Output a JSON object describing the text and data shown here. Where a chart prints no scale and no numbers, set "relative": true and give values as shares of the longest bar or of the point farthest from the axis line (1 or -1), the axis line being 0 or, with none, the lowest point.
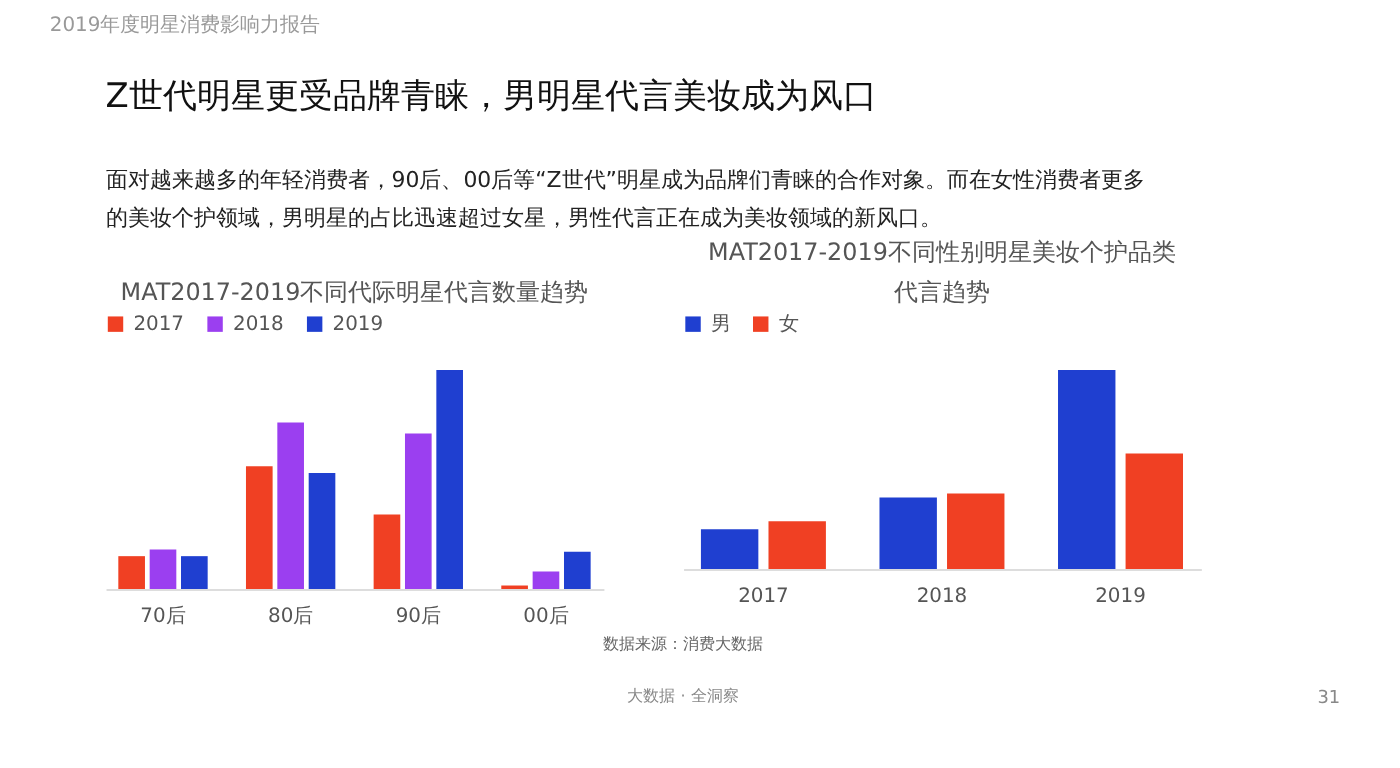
{
  "chart_data": [
    {
      "type": "bar",
      "title": "MAT2017-2019不同代际明星代言数量趋势",
      "relative": true,
      "legend": "top",
      "categories": [
        "70后",
        "80后",
        "90后",
        "00后"
      ],
      "series": [
        {
          "name": "2017",
          "color": "#f04023",
          "values": [
            0.15,
            0.56,
            0.34,
            0.016
          ]
        },
        {
          "name": "2018",
          "color": "#9b3ff0",
          "values": [
            0.18,
            0.76,
            0.71,
            0.08
          ]
        },
        {
          "name": "2019",
          "color": "#1f3fd0",
          "values": [
            0.15,
            0.53,
            1,
            0.17
          ]
        }
      ],
      "annotations": [
        "2019年度明星消费影响力报告",
        "Z世代明星更受品牌青睐，男明星代言美妆成为风口",
        "面对越来越多的年轻消费者，90后、00后等“Z世代”明星成为品牌们青睐的合作对象。而在女性消费者更多的美妆个护领域，男明星的占比迅速超过女星，男性代言正在成为美妆领域的新风口。"
      ]
    },
    {
      "type": "bar",
      "title": "MAT2017-2019不同性别明星美妆个护品类代言趋势",
      "relative": true,
      "legend": "top",
      "categories": [
        "2017",
        "2018",
        "2019"
      ],
      "series": [
        {
          "name": "男",
          "color": "#1f3fd0",
          "values": [
            0.2,
            0.36,
            1
          ]
        },
        {
          "name": "女",
          "color": "#f04023",
          "values": [
            0.24,
            0.38,
            0.58
          ]
        }
      ],
      "annotations": [
        "数据来源：消费大数据",
        "大数据 · 全洞察",
        "31"
      ]
    }
  ]
}
